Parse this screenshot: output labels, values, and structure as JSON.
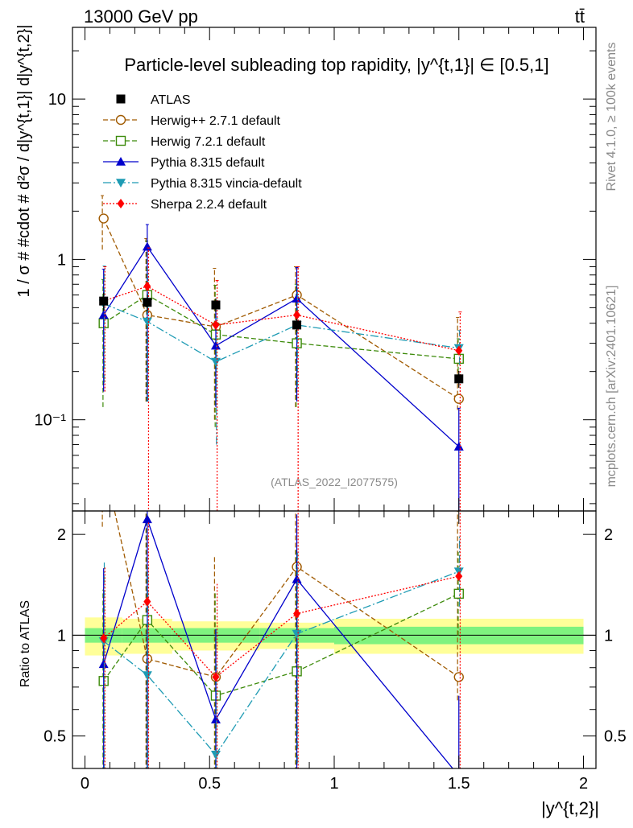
{
  "header": {
    "energy_label": "13000 GeV pp",
    "process_label": "tt̄",
    "title": "Particle-level subleading top rapidity, |y^{t,1}| ∈ [0.5,1]",
    "rivet_label": "Rivet 4.1.0, ≥ 100k events",
    "mcplots_label": "mcplots.cern.ch [arXiv:2401.10621]",
    "analysis_id": "(ATLAS_2022_I2077575)"
  },
  "chart_data": {
    "type": "line",
    "x_label": "|y^{t,2}|",
    "y_label": "1 / σ # #cdot # d²σ / d|y^{t,1}| d|y^{t,2}|",
    "ratio_label": "Ratio to ATLAS",
    "xlim": [
      -0.05,
      2.05
    ],
    "ylim": [
      0.027,
      28
    ],
    "ratio_ylim": [
      0.4,
      2.35
    ],
    "x_ticks": [
      "0",
      "0.5",
      "1",
      "1.5",
      "2"
    ],
    "y_ticks": [
      "10⁻¹",
      "1",
      "10"
    ],
    "ratio_ticks": [
      "0.5",
      "1",
      "2"
    ],
    "bin_edges": [
      0,
      0.15,
      0.35,
      0.7,
      1.0,
      2.0
    ],
    "x": [
      0.075,
      0.25,
      0.525,
      0.85,
      1.5
    ],
    "data": {
      "name": "ATLAS",
      "values": [
        0.55,
        0.54,
        0.52,
        0.39,
        0.18
      ],
      "stat_band": [
        0.05,
        0.05,
        0.05,
        0.05,
        0.06
      ],
      "total_band": [
        0.13,
        0.12,
        0.1,
        0.09,
        0.12
      ]
    },
    "series": [
      {
        "name": "Herwig++ 2.7.1 default",
        "color": "#a05a00",
        "marker": "circle-open",
        "dash": "6,3",
        "values": [
          1.8,
          0.45,
          0.38,
          0.6,
          0.135
        ],
        "err_lo": [
          0.65,
          0.32,
          0.28,
          0.48,
          0.02
        ],
        "err_hi": [
          0.7,
          0.9,
          0.5,
          0.3,
          0.3
        ],
        "ratio": [
          3.3,
          0.85,
          0.75,
          1.6,
          0.75
        ]
      },
      {
        "name": "Herwig 7.2.1 default",
        "color": "#3c8a0a",
        "marker": "square-open",
        "dash": "6,3",
        "values": [
          0.4,
          0.6,
          0.34,
          0.3,
          0.24
        ],
        "err_lo": [
          0.28,
          0.47,
          0.25,
          0.18,
          0.06
        ],
        "err_hi": [
          0.35,
          0.7,
          0.35,
          0.4,
          0.08
        ],
        "ratio": [
          0.73,
          1.11,
          0.66,
          0.78,
          1.33
        ]
      },
      {
        "name": "Pythia 8.315 default",
        "color": "#0000cc",
        "marker": "triangle-up",
        "dash": "",
        "values": [
          0.45,
          1.2,
          0.29,
          0.57,
          0.068
        ],
        "err_lo": [
          0.3,
          1.07,
          0.17,
          0.44,
          0.06
        ],
        "err_hi": [
          0.42,
          0.45,
          0.25,
          0.32,
          0.05
        ],
        "ratio": [
          0.82,
          2.22,
          0.56,
          1.47,
          0.38
        ]
      },
      {
        "name": "Pythia 8.315 vincia-default",
        "color": "#1e9bb4",
        "marker": "triangle-down",
        "dash": "10,3,2,3",
        "values": [
          0.53,
          0.41,
          0.23,
          0.39,
          0.28
        ],
        "err_lo": [
          0.36,
          0.28,
          0.16,
          0.23,
          0.06
        ],
        "err_hi": [
          0.38,
          0.45,
          0.2,
          0.3,
          0.08
        ],
        "ratio": [
          0.96,
          0.76,
          0.44,
          1.01,
          1.55
        ]
      },
      {
        "name": "Sherpa 2.2.4 default",
        "color": "#ff0000",
        "marker": "diamond",
        "dash": "2,2",
        "values": [
          0.55,
          0.68,
          0.39,
          0.45,
          0.27
        ],
        "err_lo": [
          0.4,
          0.66,
          0.38,
          0.44,
          0.26
        ],
        "err_hi": [
          0.35,
          0.5,
          0.35,
          0.45,
          0.2
        ],
        "ratio": [
          0.98,
          1.26,
          0.75,
          1.16,
          1.5
        ]
      }
    ]
  }
}
